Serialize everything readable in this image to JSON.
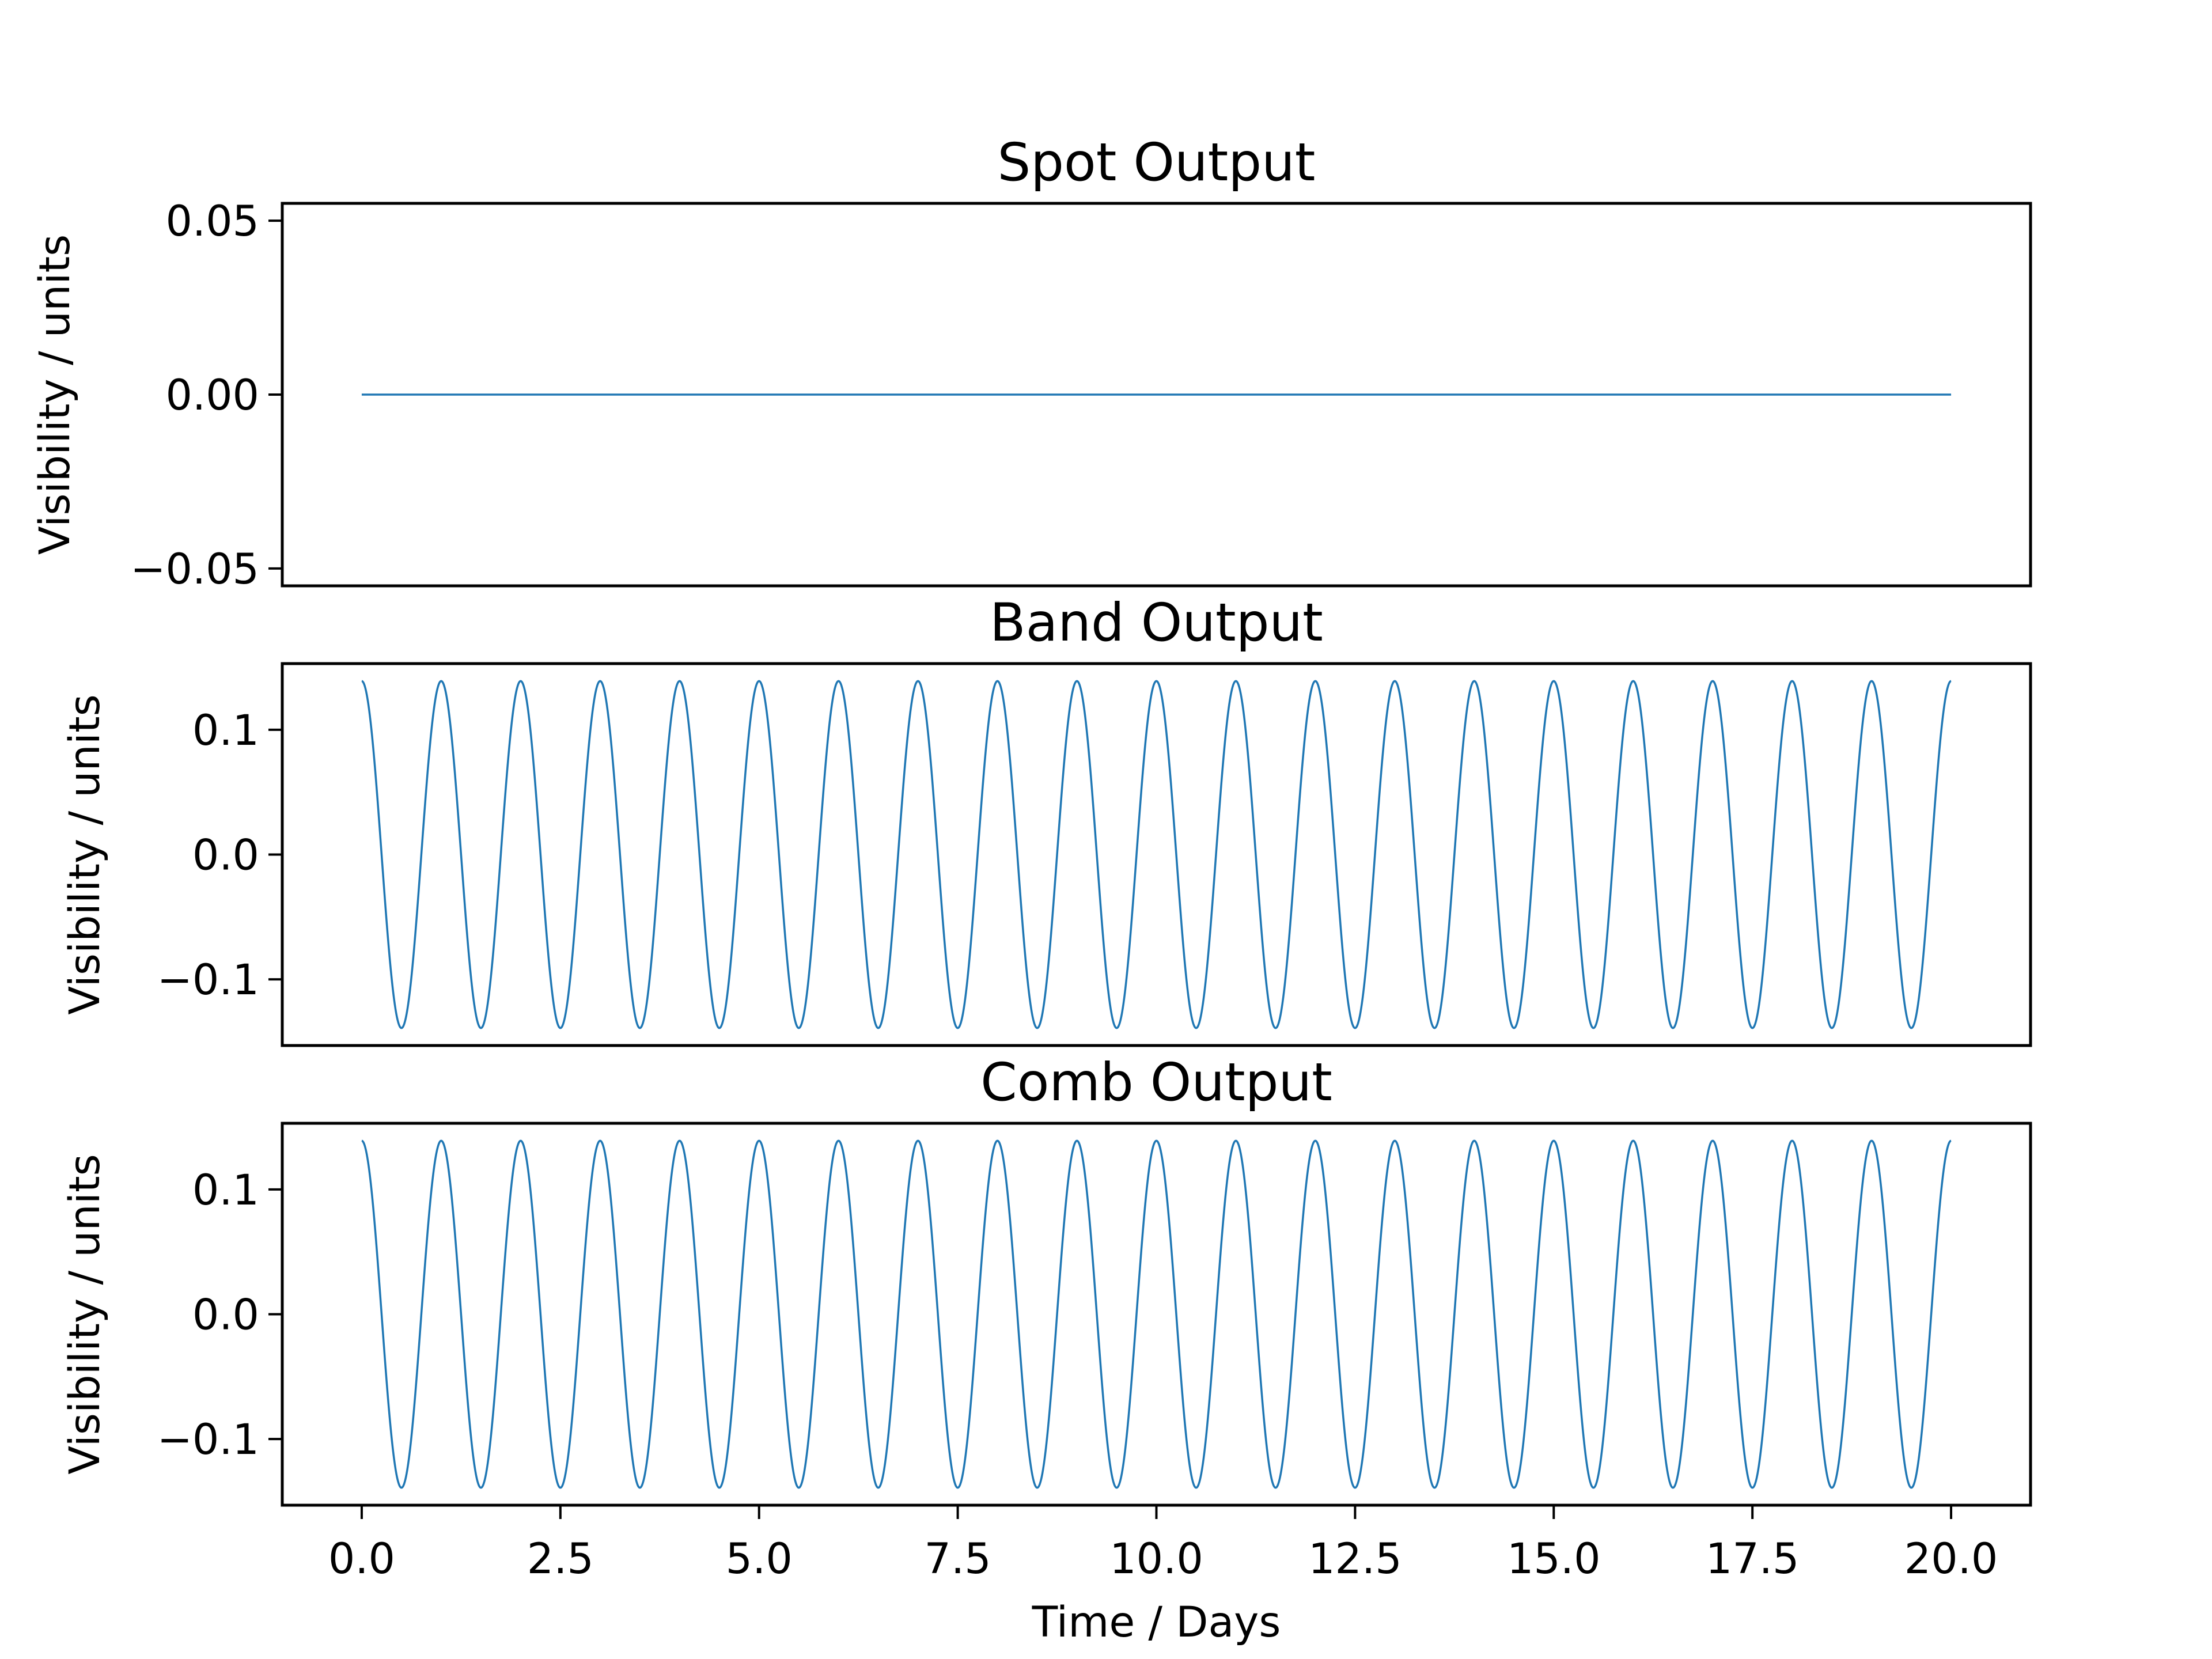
{
  "chart_data": [
    {
      "type": "line",
      "title": "Spot Output",
      "ylabel": "Visibility / units",
      "xlabel": "",
      "xlim": [
        -1.0,
        21.0
      ],
      "ylim": [
        -0.055,
        0.055
      ],
      "yticks": [
        -0.05,
        0.0,
        0.05
      ],
      "ytick_labels": [
        "−0.05",
        "0.00",
        "0.05"
      ],
      "show_xticks": false,
      "grid": false,
      "color": "#1f77b4",
      "series": [
        {
          "x": [
            0,
            20
          ],
          "y": [
            0.0,
            0.0
          ],
          "function": "constant",
          "value": 0.0
        }
      ]
    },
    {
      "type": "line",
      "title": "Band Output",
      "ylabel": "Visibility / units",
      "xlabel": "",
      "xlim": [
        -1.0,
        21.0
      ],
      "ylim": [
        -0.153,
        0.153
      ],
      "yticks": [
        -0.1,
        0.0,
        0.1
      ],
      "ytick_labels": [
        "−0.1",
        "0.0",
        "0.1"
      ],
      "show_xticks": false,
      "grid": false,
      "color": "#1f77b4",
      "series": [
        {
          "x_range": [
            0,
            20
          ],
          "function": "cosine",
          "amplitude": 0.139,
          "period": 1.0
        }
      ]
    },
    {
      "type": "line",
      "title": "Comb Output",
      "ylabel": "Visibility / units",
      "xlabel": "Time / Days",
      "xlim": [
        -1.0,
        21.0
      ],
      "ylim": [
        -0.153,
        0.153
      ],
      "yticks": [
        -0.1,
        0.0,
        0.1
      ],
      "ytick_labels": [
        "−0.1",
        "0.0",
        "0.1"
      ],
      "xticks": [
        0,
        2.5,
        5,
        7.5,
        10,
        12.5,
        15,
        17.5,
        20
      ],
      "xtick_labels": [
        "0.0",
        "2.5",
        "5.0",
        "7.5",
        "10.0",
        "12.5",
        "15.0",
        "17.5",
        "20.0"
      ],
      "show_xticks": true,
      "grid": false,
      "color": "#1f77b4",
      "series": [
        {
          "x_range": [
            0,
            20
          ],
          "function": "cosine",
          "amplitude": 0.139,
          "period": 1.0
        }
      ]
    }
  ]
}
